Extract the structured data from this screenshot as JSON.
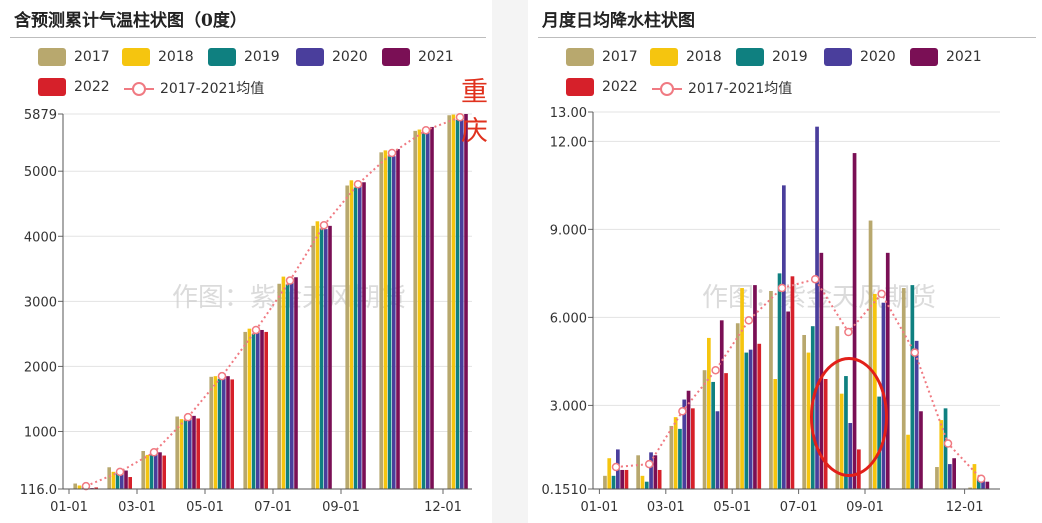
{
  "watermark": "作图：紫金天风期货",
  "city_tag": "重庆",
  "colors": {
    "2017": "#b8a86e",
    "2018": "#f5c50f",
    "2019": "#0f8080",
    "2020": "#4a3e9c",
    "2021": "#7a0f55",
    "2022": "#d6202a",
    "avg": "#f07a82"
  },
  "legend_items": [
    {
      "label": "2017",
      "key": "2017"
    },
    {
      "label": "2018",
      "key": "2018"
    },
    {
      "label": "2019",
      "key": "2019"
    },
    {
      "label": "2020",
      "key": "2020"
    },
    {
      "label": "2021",
      "key": "2021"
    },
    {
      "label": "2022",
      "key": "2022"
    },
    {
      "label": "2017-2021均值",
      "key": "avg"
    }
  ],
  "chart_data": [
    {
      "type": "bar",
      "title": "含预测累计气温柱状图（0度）",
      "months": [
        "01",
        "02",
        "03",
        "04",
        "05",
        "06",
        "07",
        "08",
        "09",
        "10",
        "11",
        "12"
      ],
      "xtick_labels": [
        "01-01",
        "03-01",
        "05-01",
        "07-01",
        "09-01",
        "12-01"
      ],
      "xtick_months": [
        "01",
        "03",
        "05",
        "07",
        "09",
        "12"
      ],
      "ylim": [
        116,
        5879
      ],
      "yticks": [
        116,
        1000,
        2000,
        3000,
        4000,
        5000,
        5879
      ],
      "ytick_labels": [
        "116.0",
        "1000",
        "2000",
        "3000",
        "4000",
        "5000",
        "5879"
      ],
      "grid": true,
      "series": [
        {
          "name": "2017",
          "values": [
            200,
            450,
            700,
            1230,
            1840,
            2530,
            3270,
            4160,
            4780,
            5290,
            5620,
            5860
          ]
        },
        {
          "name": "2018",
          "values": [
            170,
            380,
            640,
            1190,
            1850,
            2580,
            3380,
            4230,
            4860,
            5320,
            5640,
            5870
          ]
        },
        {
          "name": "2019",
          "values": [
            160,
            370,
            650,
            1180,
            1810,
            2500,
            3260,
            4120,
            4750,
            5240,
            5600,
            5790
          ]
        },
        {
          "name": "2020",
          "values": [
            150,
            380,
            720,
            1240,
            1890,
            2600,
            3330,
            4110,
            4780,
            5230,
            5600,
            5790
          ]
        },
        {
          "name": "2021",
          "values": [
            130,
            400,
            680,
            1240,
            1850,
            2560,
            3370,
            4160,
            4830,
            5340,
            5680,
            5879
          ]
        },
        {
          "name": "2022",
          "values": [
            140,
            300,
            630,
            1200,
            1800,
            2530
          ]
        }
      ],
      "average": {
        "name": "2017-2021均值",
        "values": [
          160,
          380,
          680,
          1220,
          1850,
          2560,
          3320,
          4170,
          4800,
          5280,
          5630,
          5830
        ]
      }
    },
    {
      "type": "bar",
      "title": "月度日均降水柱状图",
      "months": [
        "01",
        "02",
        "03",
        "04",
        "05",
        "06",
        "07",
        "08",
        "09",
        "10",
        "11",
        "12"
      ],
      "xtick_labels": [
        "01-01",
        "03-01",
        "05-01",
        "07-01",
        "09-01",
        "12-01"
      ],
      "xtick_months": [
        "01",
        "03",
        "05",
        "07",
        "09",
        "12"
      ],
      "ylim": [
        0.151,
        13.0
      ],
      "yticks": [
        0.151,
        3.0,
        6.0,
        9.0,
        12.0,
        13.0
      ],
      "ytick_labels": [
        "0.1510",
        "3.000",
        "6.000",
        "9.000",
        "12.00",
        "13.00"
      ],
      "grid": true,
      "series": [
        {
          "name": "2017",
          "values": [
            0.6,
            1.3,
            2.3,
            4.2,
            5.8,
            6.9,
            5.4,
            5.7,
            9.3,
            7.0,
            0.9,
            0.2
          ]
        },
        {
          "name": "2018",
          "values": [
            1.2,
            0.6,
            2.6,
            5.3,
            7.0,
            3.9,
            4.8,
            3.4,
            6.8,
            2.0,
            2.5,
            1.0
          ]
        },
        {
          "name": "2019",
          "values": [
            0.6,
            0.4,
            2.2,
            3.8,
            4.8,
            7.5,
            5.7,
            4.0,
            3.3,
            7.1,
            2.9,
            0.5
          ]
        },
        {
          "name": "2020",
          "values": [
            1.5,
            1.4,
            3.2,
            2.8,
            4.9,
            10.5,
            12.5,
            2.4,
            6.5,
            5.2,
            1.0,
            0.5
          ]
        },
        {
          "name": "2021",
          "values": [
            0.8,
            1.3,
            3.5,
            5.9,
            7.1,
            6.2,
            8.2,
            11.6,
            8.2,
            2.8,
            1.2,
            0.4
          ]
        },
        {
          "name": "2022",
          "values": [
            0.8,
            0.8,
            2.9,
            4.1,
            5.1,
            7.4,
            3.9,
            1.5
          ]
        }
      ],
      "average": {
        "name": "2017-2021均值",
        "values": [
          0.9,
          1.0,
          2.8,
          4.2,
          5.9,
          7.0,
          7.3,
          5.5,
          6.8,
          4.8,
          1.7,
          0.5
        ]
      }
    }
  ]
}
